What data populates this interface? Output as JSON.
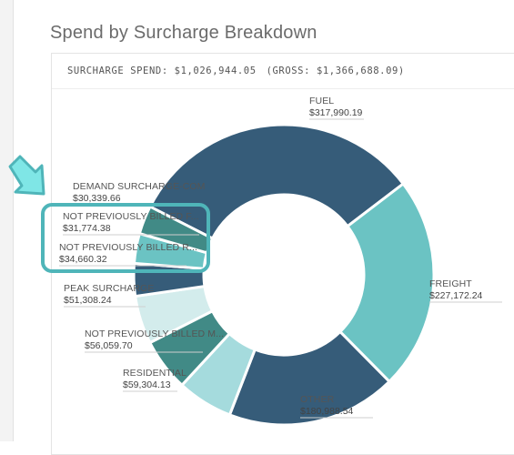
{
  "header": {
    "title": "Spend by Surcharge Breakdown",
    "summary_spend": "SURCHARGE SPEND: $1,026,944.05",
    "summary_gross": "(GROSS: $1,366,688.09)"
  },
  "chart_data": {
    "type": "pie",
    "title": "",
    "categories": [
      "FUEL",
      "FREIGHT",
      "OTHER",
      "RESIDENTIAL",
      "NOT PREVIOUSLY BILLED M...",
      "PEAK SURCHARGE",
      "NOT PREVIOUSLY BILLED R...",
      "NOT PREVIOUSLY BILLED F...",
      "DEMAND SURCHARGE-COM"
    ],
    "values": [
      317990.19,
      227172.24,
      180988.54,
      59304.13,
      56059.7,
      51308.24,
      34660.32,
      31774.38,
      30339.66
    ],
    "value_labels": [
      "$317,990.19",
      "$227,172.24",
      "$180,988.54",
      "$59,304.13",
      "$56,059.70",
      "$51,308.24",
      "$34,660.32",
      "$31,774.38",
      "$30,339.66"
    ],
    "colors": [
      "#365c79",
      "#6bc3c3",
      "#365c79",
      "#a5dbdd",
      "#418a86",
      "#d3ecec",
      "#365c79",
      "#6bc3c3",
      "#418a86"
    ],
    "ring": "donut",
    "legend": "none"
  },
  "annotations": {
    "highlight_icon": "arrow-down-right-icon",
    "highlight_color": "#4fb5b9"
  }
}
